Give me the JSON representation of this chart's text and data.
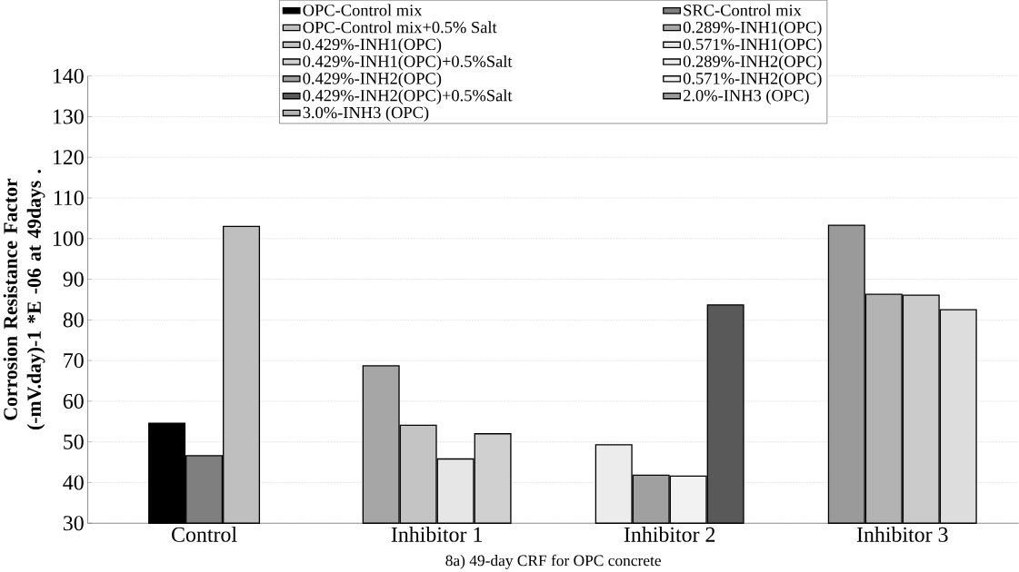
{
  "chart_data": {
    "type": "bar",
    "xlabel": "8a) 49-day CRF for OPC concrete",
    "ylabel": "Corrosion Resistance Factor (-mV.day)-1 *E -06 at 49days .",
    "categories": [
      "Control",
      "Inhibitor 1",
      "Inhibitor 2",
      "Inhibitor 3"
    ],
    "ylim": [
      30,
      140
    ],
    "yticks": [
      30,
      40,
      50,
      60,
      70,
      80,
      90,
      100,
      110,
      120,
      130,
      140
    ],
    "grid": "y",
    "legend": "top",
    "series": [
      {
        "name": "OPC-Control mix",
        "color": "#000000",
        "values": [
          54.6,
          null,
          null,
          null
        ]
      },
      {
        "name": "SRC-Control mix",
        "color": "#7f7f7f",
        "values": [
          46.6,
          null,
          null,
          null
        ]
      },
      {
        "name": "OPC-Control mix+0.5% Salt",
        "color": "#bfbfbf",
        "values": [
          103.0,
          null,
          null,
          null
        ]
      },
      {
        "name": "0.289%-INH1(OPC)",
        "color": "#a6a6a6",
        "values": [
          null,
          68.7,
          null,
          null
        ]
      },
      {
        "name": "0.429%-INH1(OPC)",
        "color": "#c4c4c4",
        "values": [
          null,
          54.1,
          null,
          null
        ]
      },
      {
        "name": "0.571%-INH1(OPC)",
        "color": "#e6e6e6",
        "values": [
          null,
          45.8,
          null,
          null
        ]
      },
      {
        "name": "0.429%-INH1(OPC)+0.5%Salt",
        "color": "#d0d0d0",
        "values": [
          null,
          52.0,
          null,
          null
        ]
      },
      {
        "name": "0.289%-INH2(OPC)",
        "color": "#ececec",
        "values": [
          null,
          null,
          49.3,
          null
        ]
      },
      {
        "name": "0.429%-INH2(OPC)",
        "color": "#a0a0a0",
        "values": [
          null,
          null,
          41.8,
          null
        ]
      },
      {
        "name": "0.571%-INH2(OPC)",
        "color": "#f2f2f2",
        "values": [
          null,
          null,
          41.6,
          null
        ]
      },
      {
        "name": "0.429%-INH2(OPC)+0.5%Salt",
        "color": "#595959",
        "values": [
          null,
          null,
          83.7,
          null
        ]
      },
      {
        "name": "2.0%-INH3 (OPC)",
        "color": "#9a9a9a",
        "values": [
          null,
          null,
          null,
          103.3
        ]
      },
      {
        "name": "3.0%-INH3 (OPC)",
        "color": "#b3b3b3",
        "values": [
          null,
          null,
          null,
          86.3
        ]
      },
      {
        "color": "#cbcbcb",
        "values": [
          null,
          null,
          null,
          86.1
        ]
      },
      {
        "color": "#dddddd",
        "values": [
          null,
          null,
          null,
          82.5
        ]
      }
    ]
  }
}
